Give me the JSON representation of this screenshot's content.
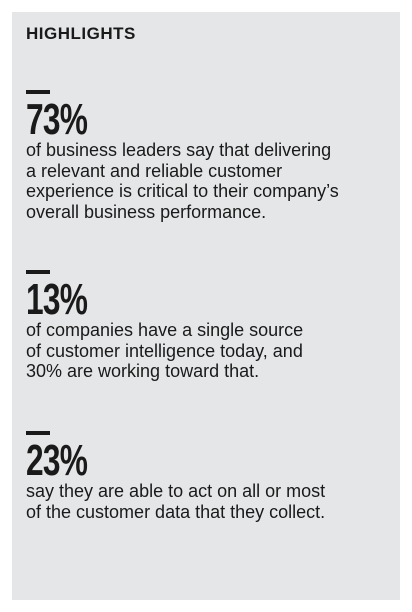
{
  "header": {
    "title": "HIGHLIGHTS"
  },
  "items": [
    {
      "stat": "73%",
      "lines": [
        "of business leaders say that delivering",
        "a relevant and reliable customer",
        "experience is critical to their company’s",
        "overall business performance."
      ]
    },
    {
      "stat": "13%",
      "lines": [
        "of companies have a single source",
        "of customer intelligence today, and",
        "30% are working toward that."
      ]
    },
    {
      "stat": "23%",
      "lines": [
        "say they are able to act on all or most",
        "of the customer data that they collect."
      ]
    }
  ]
}
